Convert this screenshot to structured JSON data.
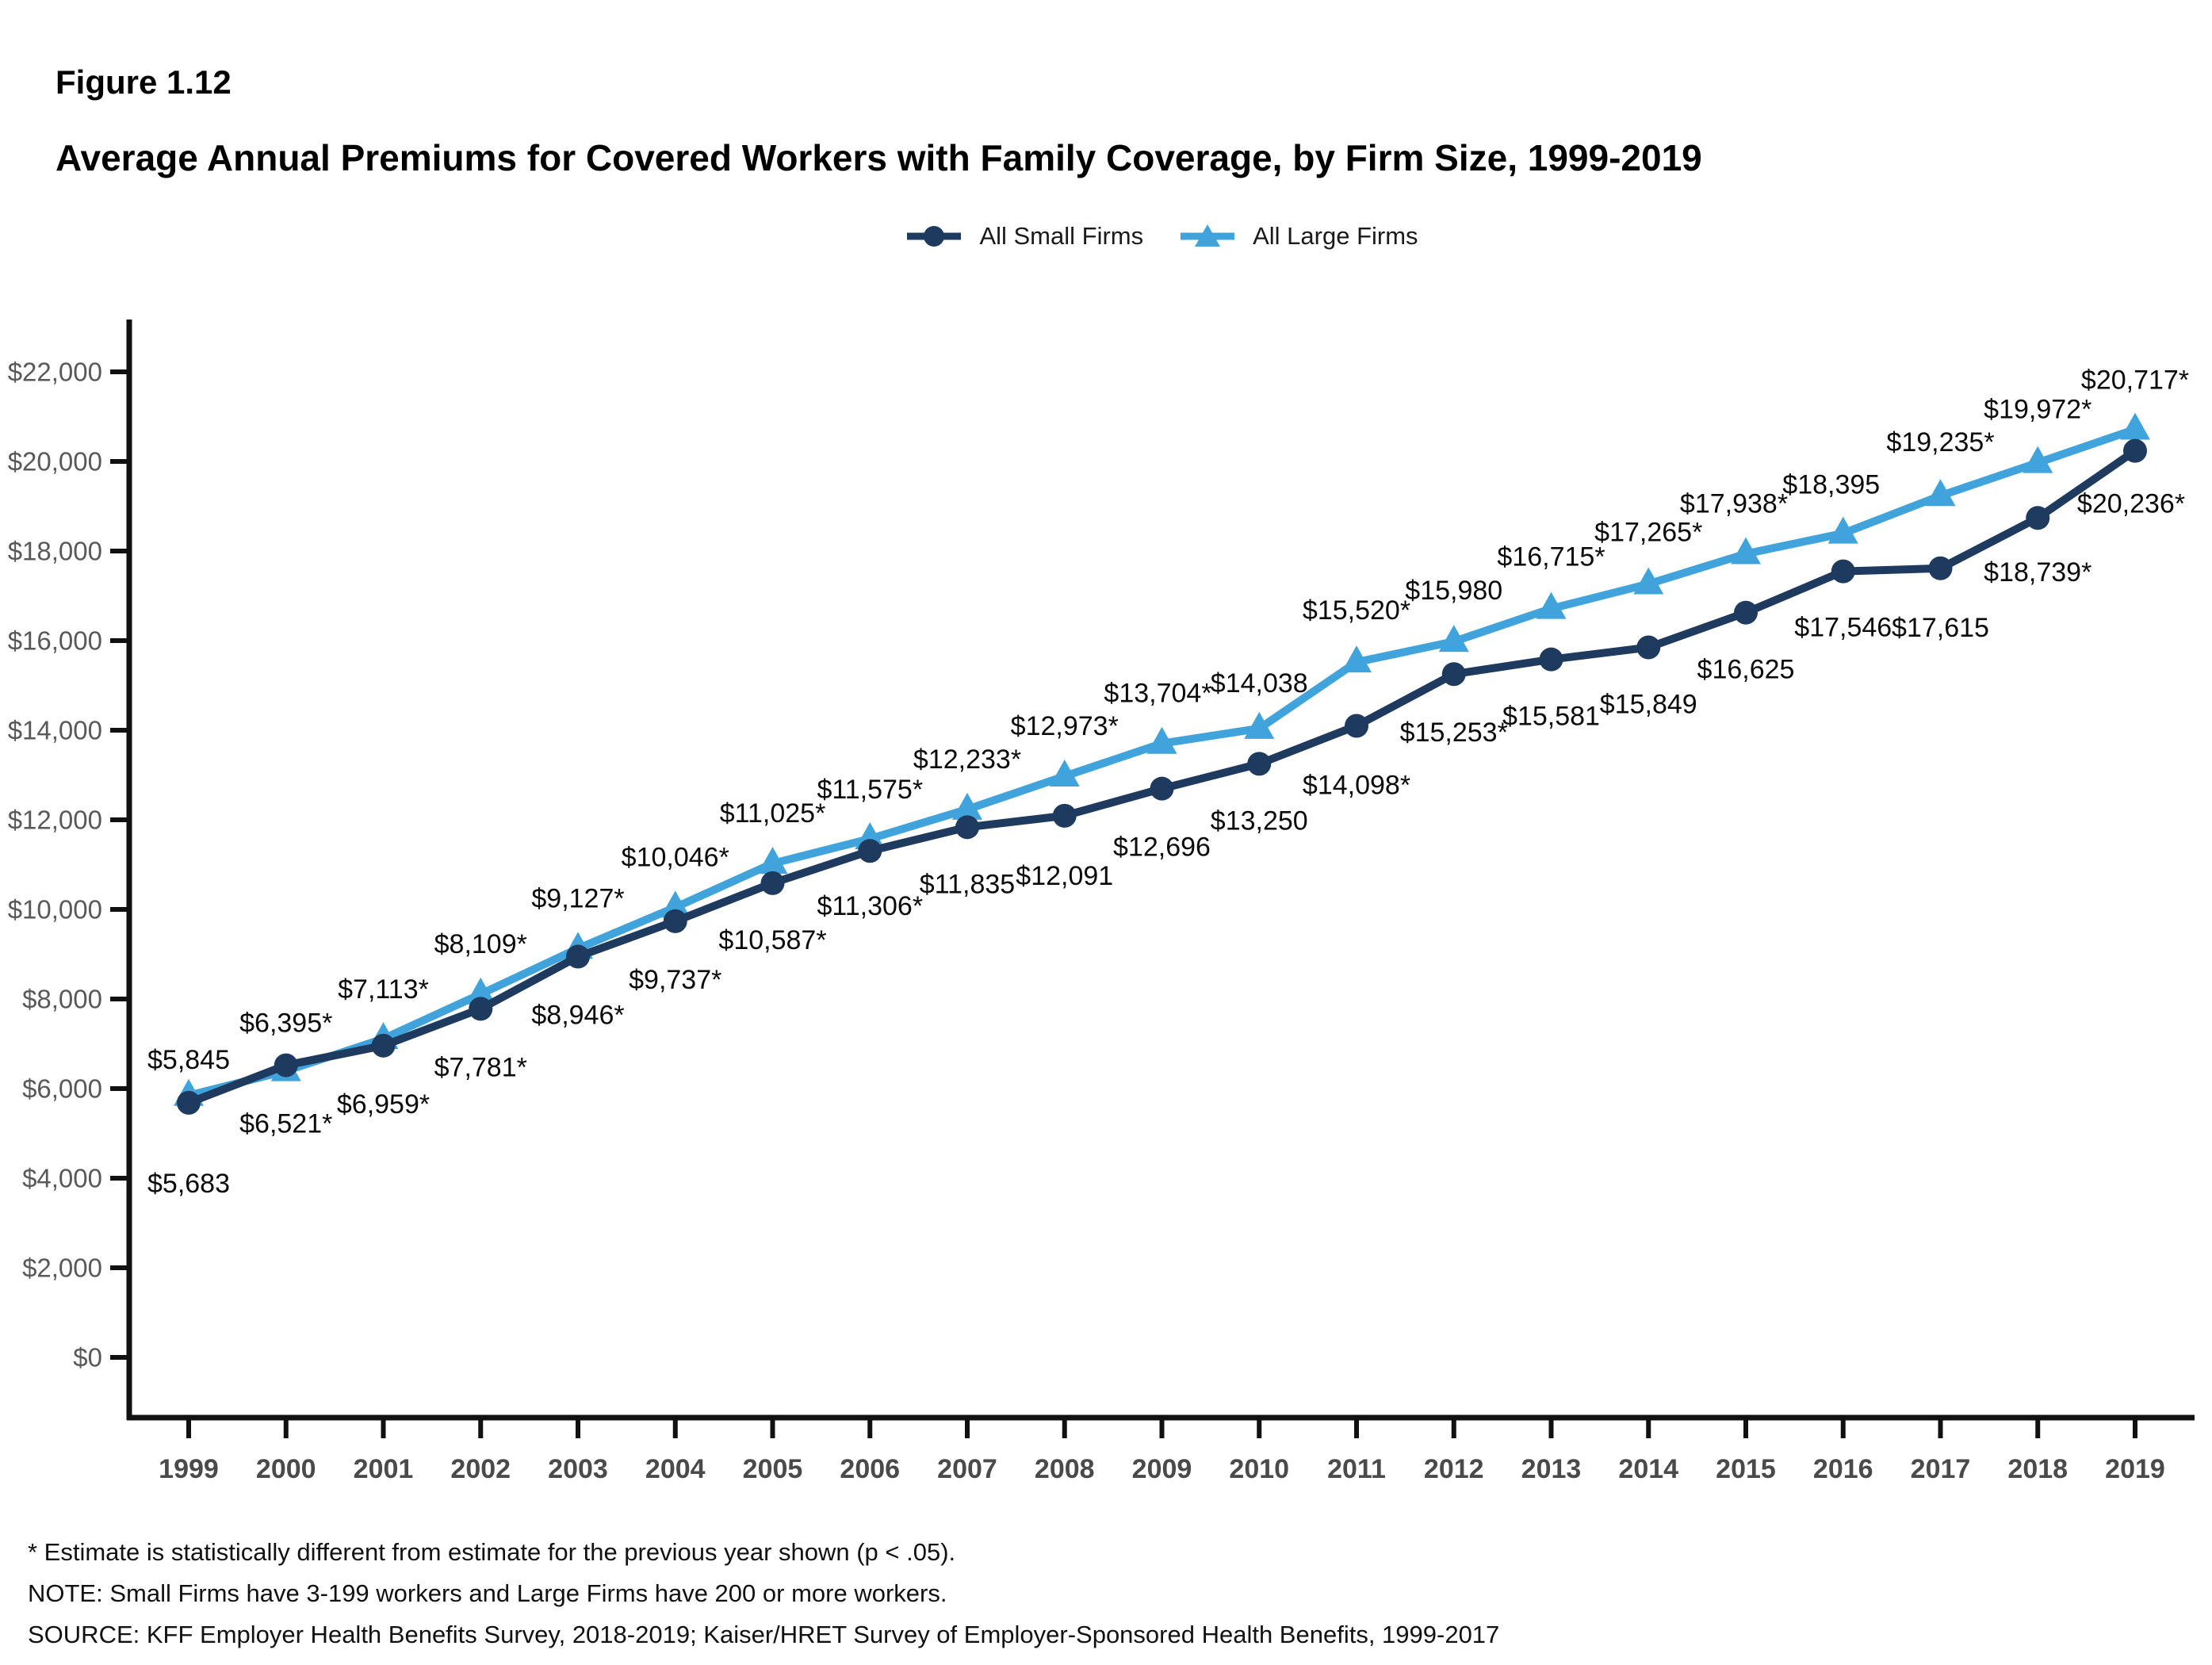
{
  "page": {
    "figure_label": "Figure 1.12",
    "title": "Average Annual Premiums for Covered Workers with Family Coverage, by Firm Size, 1999-2019",
    "footnotes": [
      "* Estimate is statistically different from estimate for the previous year shown (p < .05).",
      "NOTE: Small Firms have 3-199 workers and Large Firms have 200 or more workers.",
      "SOURCE: KFF Employer Health Benefits Survey, 2018-2019; Kaiser/HRET Survey of Employer-Sponsored Health Benefits, 1999-2017"
    ]
  },
  "legend": {
    "items": [
      {
        "label": "All Small Firms",
        "color": "#1e3a5f",
        "marker": "circle"
      },
      {
        "label": "All Large Firms",
        "color": "#41a3dc",
        "marker": "triangle"
      }
    ]
  },
  "colors": {
    "small_firms": "#1e3a5f",
    "large_firms": "#41a3dc",
    "axis": "#111111",
    "y_tick_label": "#595959",
    "x_tick_label": "#4a4a4a",
    "data_label": "#0b0b0b"
  },
  "chart_data": {
    "type": "line",
    "title": "Average Annual Premiums for Covered Workers with Family Coverage, by Firm Size, 1999-2019",
    "xlabel": "",
    "ylabel": "",
    "grid": false,
    "legend_position": "top",
    "categories": [
      "1999",
      "2000",
      "2001",
      "2002",
      "2003",
      "2004",
      "2005",
      "2006",
      "2007",
      "2008",
      "2009",
      "2010",
      "2011",
      "2012",
      "2013",
      "2014",
      "2015",
      "2016",
      "2017",
      "2018",
      "2019"
    ],
    "y_axis": {
      "min": 0,
      "max": 22000,
      "tick_step": 2000,
      "tick_labels": [
        "$0",
        "$2,000",
        "$4,000",
        "$6,000",
        "$8,000",
        "$10,000",
        "$12,000",
        "$14,000",
        "$16,000",
        "$18,000",
        "$20,000",
        "$22,000"
      ]
    },
    "series": [
      {
        "name": "All Small Firms",
        "color": "#1e3a5f",
        "marker": "circle",
        "values": [
          5683,
          6521,
          6959,
          7781,
          8946,
          9737,
          10587,
          11306,
          11835,
          12091,
          12696,
          13250,
          14098,
          15253,
          15581,
          15849,
          16625,
          17546,
          17615,
          18739,
          20236
        ],
        "labels": [
          "$5,683",
          "$6,521*",
          "$6,959*",
          "$7,781*",
          "$8,946*",
          "$9,737*",
          "$10,587*",
          "$11,306*",
          "$11,835",
          "$12,091",
          "$12,696",
          "$13,250",
          "$14,098*",
          "$15,253*",
          "$15,581",
          "$15,849",
          "$16,625",
          "$17,546",
          "$17,615",
          "$18,739*",
          "$20,236*"
        ],
        "label_dx": [
          0,
          0,
          0,
          0,
          0,
          0,
          0,
          0,
          0,
          0,
          0,
          0,
          0,
          0,
          0,
          0,
          0,
          0,
          0,
          0,
          -5
        ],
        "label_dy": [
          102,
          74,
          74,
          74,
          74,
          74,
          72,
          70,
          72,
          76,
          74,
          72,
          75,
          74,
          72,
          72,
          72,
          71,
          75,
          69,
          67
        ]
      },
      {
        "name": "All Large Firms",
        "color": "#41a3dc",
        "marker": "triangle",
        "values": [
          5845,
          6395,
          7113,
          8109,
          9127,
          10046,
          11025,
          11575,
          12233,
          12973,
          13704,
          14038,
          15520,
          15980,
          16715,
          17265,
          17938,
          18395,
          19235,
          19972,
          20717
        ],
        "labels": [
          "$5,845",
          "$6,395*",
          "$7,113*",
          "$8,109*",
          "$9,127*",
          "$10,046*",
          "$11,025*",
          "$11,575*",
          "$12,233*",
          "$12,973*",
          "$13,704*",
          "$14,038",
          "$15,520*",
          "$15,980",
          "$16,715*",
          "$17,265*",
          "$17,938*",
          "$18,395",
          "$19,235*",
          "$19,972*",
          "$20,717*"
        ],
        "label_dx": [
          0,
          0,
          0,
          0,
          0,
          0,
          0,
          0,
          0,
          0,
          -5,
          0,
          0,
          0,
          0,
          0,
          -15,
          -15,
          0,
          0,
          0
        ],
        "label_dy": [
          -45,
          -60,
          -62,
          -63,
          -63,
          -63,
          -63,
          -62,
          -63,
          -63,
          -63,
          -57,
          -65,
          -64,
          -65,
          -65,
          -63,
          -61,
          -67,
          -67,
          -62
        ]
      }
    ]
  }
}
